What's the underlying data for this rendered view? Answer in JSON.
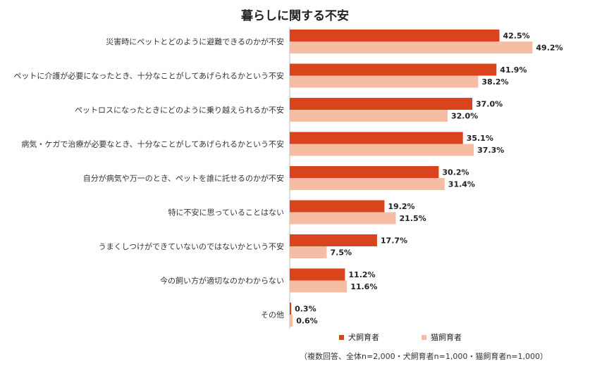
{
  "chart_data": {
    "type": "bar",
    "orientation": "horizontal",
    "title": "暮らしに関する不安",
    "categories": [
      "災害時にペットとどのように避難できるのかが不安",
      "ペットに介護が必要になったとき、十分なことがしてあげられるかという不安",
      "ペットロスになったときにどのように乗り越えられるか不安",
      "病気・ケガで治療が必要なとき、十分なことがしてあげられるかという不安",
      "自分が病気や万一のとき、ペットを誰に託せるのかが不安",
      "特に不安に思っていることはない",
      "うまくしつけができていないのではないかという不安",
      "今の飼い方が適切なのかわからない",
      "その他"
    ],
    "series": [
      {
        "name": "犬飼育者",
        "color": "#d9441c",
        "values": [
          42.5,
          41.9,
          37.0,
          35.1,
          30.2,
          19.2,
          17.7,
          11.2,
          0.3
        ],
        "labels": [
          "42.5%",
          "41.9%",
          "37.0%",
          "35.1%",
          "30.2%",
          "19.2%",
          "17.7%",
          "11.2%",
          "0.3%"
        ]
      },
      {
        "name": "猫飼育者",
        "color": "#f6bda5",
        "values": [
          49.2,
          38.2,
          32.0,
          37.3,
          31.4,
          21.5,
          7.5,
          11.6,
          0.6
        ],
        "labels": [
          "49.2%",
          "38.2%",
          "32.0%",
          "37.3%",
          "31.4%",
          "21.5%",
          "7.5%",
          "11.6%",
          "0.6%"
        ]
      }
    ],
    "unit": "%",
    "xlim": [
      0,
      50
    ],
    "legend_position": "bottom",
    "footnote": "（複数回答、全体n=2,000・犬飼育者n=1,000・猫飼育者n=1,000）"
  }
}
